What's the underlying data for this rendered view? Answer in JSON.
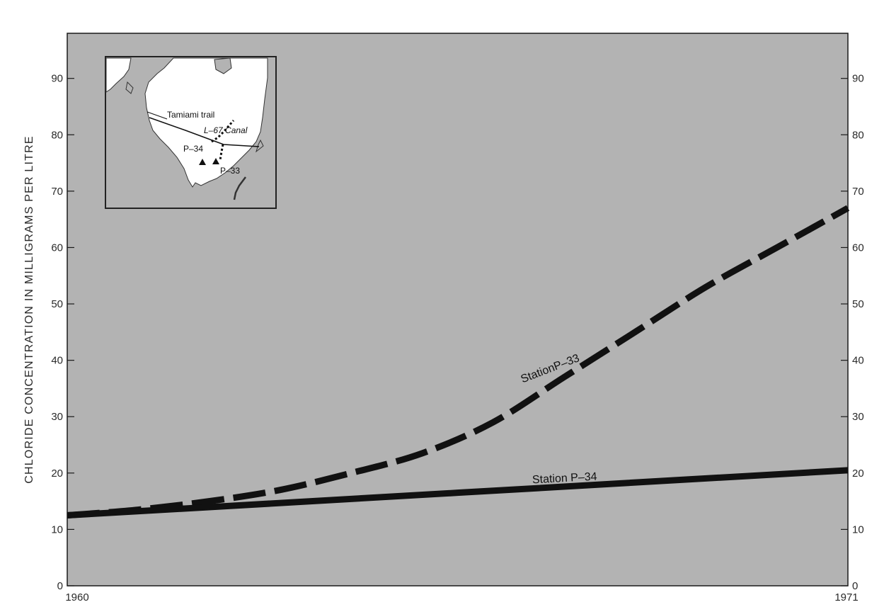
{
  "chart_data": {
    "type": "line",
    "x_tick_labels": [
      "1960",
      "1971"
    ],
    "xlim": [
      1960,
      1971
    ],
    "ylabel": "CHLORIDE CONCENTRATION IN MILLIGRAMS PER LITRE",
    "ylim": [
      0,
      98
    ],
    "y_ticks": [
      0,
      10,
      20,
      30,
      40,
      50,
      60,
      70,
      80,
      90
    ],
    "series": [
      {
        "name": "StationP–33",
        "style": "dashed",
        "color": "#111111",
        "x": [
          1960,
          1961,
          1962,
          1963,
          1964,
          1965,
          1966,
          1967,
          1968,
          1969,
          1970,
          1971
        ],
        "y": [
          12.5,
          13.5,
          15,
          17,
          20,
          23.5,
          29,
          37,
          45,
          53,
          60,
          67
        ]
      },
      {
        "name": "Station P–34",
        "style": "solid",
        "color": "#111111",
        "x": [
          1960,
          1971
        ],
        "y": [
          12.5,
          20.5
        ]
      }
    ],
    "grid": false,
    "background": "#b3b3b3"
  },
  "inset_map": {
    "labels": {
      "tamiami": "Tamiami trail",
      "canal": "L–67 Canal",
      "p34": "P–34",
      "p33": "P–33"
    },
    "land_color": "#ffffff",
    "water_color": "#b3b3b3"
  }
}
